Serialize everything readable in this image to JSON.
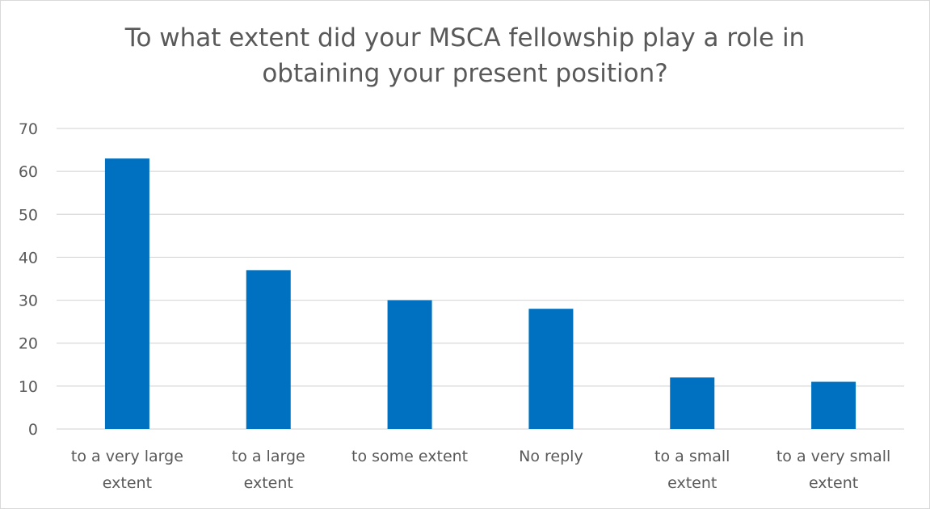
{
  "chart_data": {
    "type": "bar",
    "title_lines": [
      "To what extent did your MSCA fellowship play a role in",
      "obtaining your present position?"
    ],
    "categories": [
      [
        "to a very large",
        "extent"
      ],
      [
        "to a large",
        "extent"
      ],
      [
        "to some extent"
      ],
      [
        "No reply"
      ],
      [
        "to a small",
        "extent"
      ],
      [
        "to a very small",
        "extent"
      ]
    ],
    "values": [
      63,
      37,
      30,
      28,
      12,
      11
    ],
    "ylim": [
      0,
      70
    ],
    "yticks": [
      0,
      10,
      20,
      30,
      40,
      50,
      60,
      70
    ],
    "grid": true,
    "legend": "none",
    "colors": {
      "bar": "#0070C0",
      "grid": "#d9d9d9",
      "text": "#595959"
    }
  }
}
